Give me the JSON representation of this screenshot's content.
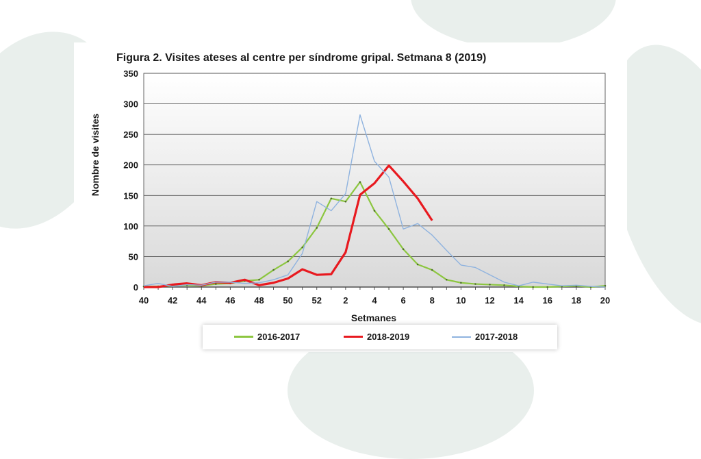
{
  "page": {
    "title": "Figura 2. Visites  ateses al centre per síndrome gripal. Setmana 8 (2019)"
  },
  "chart_data": {
    "type": "line",
    "title": "Figura 2. Visites  ateses al centre per síndrome gripal. Setmana 8 (2019)",
    "xlabel": "Setmanes",
    "ylabel": "Nombre de visites",
    "ylim": [
      0,
      350
    ],
    "yticks": [
      0,
      50,
      100,
      150,
      200,
      250,
      300,
      350
    ],
    "x_categories": [
      "40",
      "41",
      "42",
      "43",
      "44",
      "45",
      "46",
      "47",
      "48",
      "49",
      "50",
      "51",
      "52",
      "1",
      "2",
      "3",
      "4",
      "5",
      "6",
      "7",
      "8",
      "9",
      "10",
      "11",
      "12",
      "13",
      "14",
      "15",
      "16",
      "17",
      "18",
      "19",
      "20"
    ],
    "x_tick_labels": [
      "40",
      "42",
      "44",
      "46",
      "48",
      "50",
      "52",
      "2",
      "4",
      "6",
      "8",
      "10",
      "12",
      "14",
      "16",
      "18",
      "20"
    ],
    "grid": true,
    "legend_position": "bottom",
    "series": [
      {
        "name": "2016-2017",
        "color": "#8cc63f",
        "values": [
          1,
          1,
          2,
          3,
          2,
          5,
          6,
          10,
          12,
          28,
          42,
          65,
          97,
          145,
          140,
          172,
          125,
          95,
          62,
          37,
          28,
          12,
          7,
          5,
          4,
          3,
          1,
          0,
          0,
          1,
          2,
          0,
          2
        ]
      },
      {
        "name": "2018-2019",
        "color": "#e8191f",
        "values": [
          0,
          0,
          4,
          6,
          3,
          8,
          7,
          12,
          3,
          7,
          14,
          29,
          20,
          21,
          57,
          151,
          170,
          199,
          173,
          145,
          109
        ]
      },
      {
        "name": "2017-2018",
        "color": "#8fb3df",
        "values": [
          2,
          6,
          1,
          4,
          3,
          8,
          8,
          6,
          7,
          12,
          20,
          55,
          140,
          125,
          153,
          282,
          206,
          180,
          95,
          104,
          85,
          60,
          36,
          32,
          20,
          8,
          2,
          8,
          5,
          2,
          3,
          1,
          0
        ]
      }
    ]
  }
}
